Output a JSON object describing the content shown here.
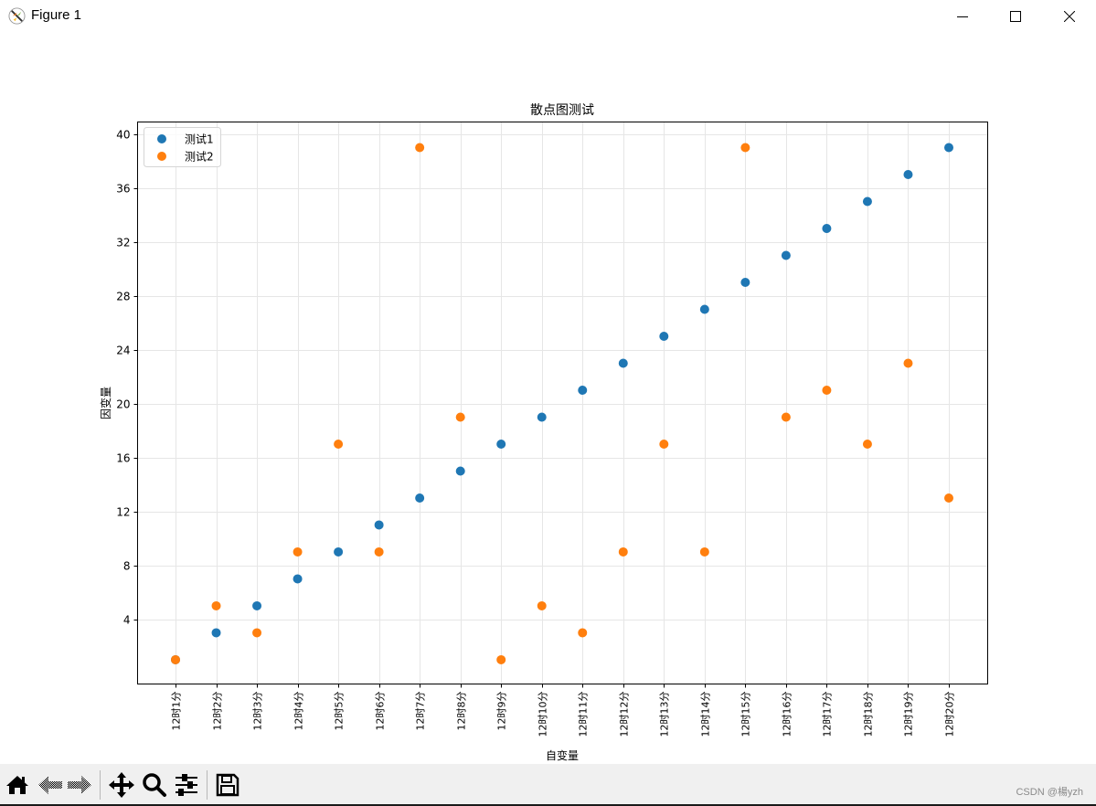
{
  "window": {
    "title": "Figure 1",
    "icon": "matplotlib-icon",
    "controls": [
      "minimize-icon",
      "maximize-icon",
      "close-icon"
    ]
  },
  "toolbar": {
    "buttons": [
      {
        "name": "home",
        "icon": "home-icon"
      },
      {
        "name": "back",
        "icon": "back-arrow-icon"
      },
      {
        "name": "forward",
        "icon": "forward-arrow-icon"
      },
      {
        "name": "pan",
        "icon": "pan-move-icon"
      },
      {
        "name": "zoom",
        "icon": "zoom-magnifier-icon"
      },
      {
        "name": "configure-subplots",
        "icon": "sliders-icon"
      },
      {
        "name": "save",
        "icon": "save-floppy-icon"
      }
    ]
  },
  "watermark": "CSDN @楊yzh",
  "chart_data": {
    "type": "scatter",
    "title": "散点图测试",
    "xlabel": "自变量",
    "ylabel": "因变量",
    "categories": [
      "12时1分",
      "12时2分",
      "12时3分",
      "12时4分",
      "12时5分",
      "12时6分",
      "12时7分",
      "12时8分",
      "12时9分",
      "12时10分",
      "12时11分",
      "12时12分",
      "12时13分",
      "12时14分",
      "12时15分",
      "12时16分",
      "12时17分",
      "12时18分",
      "12时19分",
      "12时20分"
    ],
    "series": [
      {
        "name": "测试1",
        "color": "#1f77b4",
        "values": [
          1,
          3,
          5,
          7,
          9,
          11,
          13,
          15,
          17,
          19,
          21,
          23,
          25,
          27,
          29,
          31,
          33,
          35,
          37,
          39
        ]
      },
      {
        "name": "测试2",
        "color": "#ff7f0e",
        "values": [
          1,
          5,
          3,
          9,
          17,
          9,
          39,
          19,
          1,
          5,
          3,
          9,
          17,
          9,
          39,
          19,
          21,
          17,
          23,
          13
        ]
      }
    ],
    "yticks": [
      4,
      8,
      12,
      16,
      20,
      24,
      28,
      32,
      36,
      40
    ],
    "ylim": [
      -0.8,
      40.9
    ],
    "xtick_rotation": 90,
    "grid": true,
    "legend_position": "upper left"
  }
}
